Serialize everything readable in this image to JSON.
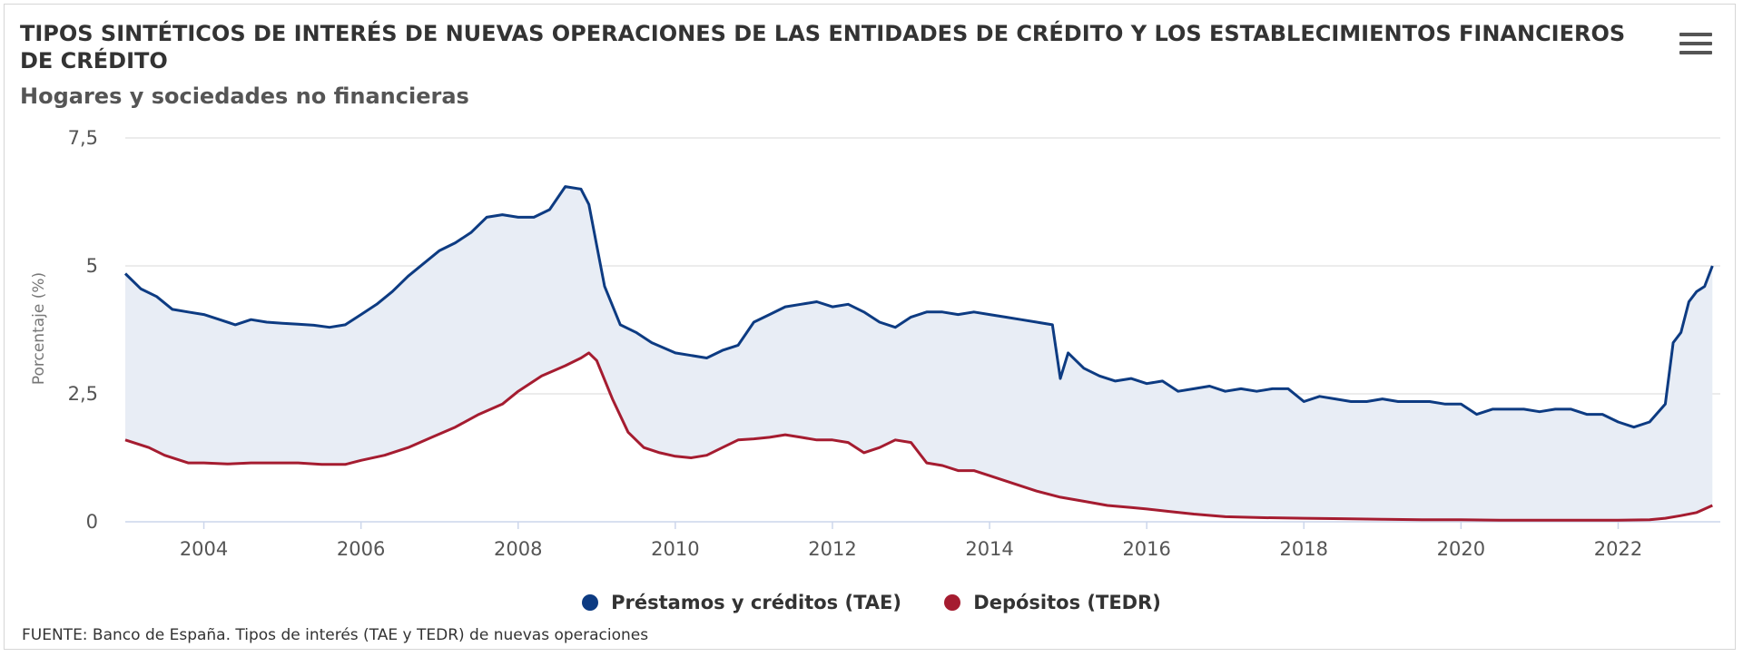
{
  "header": {
    "title": "TIPOS SINTÉTICOS DE INTERÉS DE NUEVAS OPERACIONES DE LAS ENTIDADES DE CRÉDITO Y LOS ESTABLECIMIENTOS FINANCIEROS DE CRÉDITO",
    "subtitle": "Hogares y sociedades no financieras",
    "menu_icon": "hamburger-menu-icon"
  },
  "source": "FUENTE: Banco de España. Tipos de interés (TAE y TEDR) de nuevas operaciones",
  "legend": [
    {
      "label": "Préstamos y créditos (TAE)",
      "color": "#0d3b82"
    },
    {
      "label": "Depósitos (TEDR)",
      "color": "#a51c30"
    }
  ],
  "chart_data": {
    "type": "line",
    "ylabel": "Porcentaje (%)",
    "ylim": [
      0,
      7.5
    ],
    "yticks": [
      "0",
      "2,5",
      "5",
      "7,5"
    ],
    "xlim": [
      2003.0,
      2023.3
    ],
    "xticks": [
      "2004",
      "2006",
      "2008",
      "2010",
      "2012",
      "2014",
      "2016",
      "2018",
      "2020",
      "2022"
    ],
    "grid": true,
    "legend_position": "bottom",
    "fill_between_series": true,
    "fill_color": "#e8edf5",
    "series": [
      {
        "name": "Préstamos y créditos (TAE)",
        "color": "#0d3b82",
        "x": [
          2003.0,
          2003.2,
          2003.4,
          2003.6,
          2003.8,
          2004.0,
          2004.2,
          2004.4,
          2004.6,
          2004.8,
          2005.0,
          2005.2,
          2005.4,
          2005.6,
          2005.8,
          2006.0,
          2006.2,
          2006.4,
          2006.6,
          2006.8,
          2007.0,
          2007.2,
          2007.4,
          2007.6,
          2007.8,
          2008.0,
          2008.2,
          2008.4,
          2008.6,
          2008.8,
          2008.9,
          2009.0,
          2009.1,
          2009.3,
          2009.5,
          2009.7,
          2010.0,
          2010.2,
          2010.4,
          2010.6,
          2010.8,
          2011.0,
          2011.2,
          2011.4,
          2011.6,
          2011.8,
          2012.0,
          2012.2,
          2012.4,
          2012.6,
          2012.8,
          2013.0,
          2013.2,
          2013.4,
          2013.6,
          2013.8,
          2014.0,
          2014.2,
          2014.4,
          2014.6,
          2014.8,
          2014.9,
          2015.0,
          2015.2,
          2015.4,
          2015.6,
          2015.8,
          2016.0,
          2016.2,
          2016.4,
          2016.6,
          2016.8,
          2017.0,
          2017.2,
          2017.4,
          2017.6,
          2017.8,
          2018.0,
          2018.2,
          2018.4,
          2018.6,
          2018.8,
          2019.0,
          2019.2,
          2019.4,
          2019.6,
          2019.8,
          2020.0,
          2020.2,
          2020.4,
          2020.6,
          2020.8,
          2021.0,
          2021.2,
          2021.4,
          2021.6,
          2021.8,
          2022.0,
          2022.2,
          2022.4,
          2022.6,
          2022.7,
          2022.8,
          2022.9,
          2023.0,
          2023.1,
          2023.2
        ],
        "values": [
          4.85,
          4.55,
          4.4,
          4.15,
          4.1,
          4.05,
          3.95,
          3.85,
          3.95,
          3.9,
          3.88,
          3.86,
          3.84,
          3.8,
          3.85,
          4.05,
          4.25,
          4.5,
          4.8,
          5.05,
          5.3,
          5.45,
          5.65,
          5.95,
          6.0,
          5.95,
          5.95,
          6.1,
          6.55,
          6.5,
          6.2,
          5.4,
          4.6,
          3.85,
          3.7,
          3.5,
          3.3,
          3.25,
          3.2,
          3.35,
          3.45,
          3.9,
          4.05,
          4.2,
          4.25,
          4.3,
          4.2,
          4.25,
          4.1,
          3.9,
          3.8,
          4.0,
          4.1,
          4.1,
          4.05,
          4.1,
          4.05,
          4.0,
          3.95,
          3.9,
          3.85,
          2.8,
          3.3,
          3.0,
          2.85,
          2.75,
          2.8,
          2.7,
          2.75,
          2.55,
          2.6,
          2.65,
          2.55,
          2.6,
          2.55,
          2.6,
          2.6,
          2.35,
          2.45,
          2.4,
          2.35,
          2.35,
          2.4,
          2.35,
          2.35,
          2.35,
          2.3,
          2.3,
          2.1,
          2.2,
          2.2,
          2.2,
          2.15,
          2.2,
          2.2,
          2.1,
          2.1,
          1.95,
          1.85,
          1.95,
          2.3,
          3.5,
          3.7,
          4.3,
          4.5,
          4.6,
          5.0
        ]
      },
      {
        "name": "Depósitos (TEDR)",
        "color": "#a51c30",
        "x": [
          2003.0,
          2003.3,
          2003.5,
          2003.8,
          2004.0,
          2004.3,
          2004.6,
          2004.9,
          2005.2,
          2005.5,
          2005.8,
          2006.0,
          2006.3,
          2006.6,
          2006.9,
          2007.2,
          2007.5,
          2007.8,
          2008.0,
          2008.3,
          2008.6,
          2008.8,
          2008.9,
          2009.0,
          2009.2,
          2009.4,
          2009.6,
          2009.8,
          2010.0,
          2010.2,
          2010.4,
          2010.6,
          2010.8,
          2011.0,
          2011.2,
          2011.4,
          2011.6,
          2011.8,
          2012.0,
          2012.2,
          2012.4,
          2012.6,
          2012.8,
          2013.0,
          2013.2,
          2013.4,
          2013.6,
          2013.8,
          2014.0,
          2014.3,
          2014.6,
          2014.9,
          2015.2,
          2015.5,
          2015.8,
          2016.0,
          2016.3,
          2016.6,
          2017.0,
          2017.5,
          2018.0,
          2018.5,
          2019.0,
          2019.5,
          2020.0,
          2020.5,
          2021.0,
          2021.5,
          2022.0,
          2022.4,
          2022.6,
          2022.8,
          2023.0,
          2023.2
        ],
        "values": [
          1.6,
          1.45,
          1.3,
          1.15,
          1.15,
          1.13,
          1.15,
          1.15,
          1.15,
          1.12,
          1.12,
          1.2,
          1.3,
          1.45,
          1.65,
          1.85,
          2.1,
          2.3,
          2.55,
          2.85,
          3.05,
          3.2,
          3.3,
          3.15,
          2.4,
          1.75,
          1.45,
          1.35,
          1.28,
          1.25,
          1.3,
          1.45,
          1.6,
          1.62,
          1.65,
          1.7,
          1.65,
          1.6,
          1.6,
          1.55,
          1.35,
          1.45,
          1.6,
          1.55,
          1.15,
          1.1,
          1.0,
          1.0,
          0.9,
          0.75,
          0.6,
          0.48,
          0.4,
          0.32,
          0.28,
          0.25,
          0.2,
          0.15,
          0.1,
          0.08,
          0.07,
          0.06,
          0.05,
          0.04,
          0.04,
          0.03,
          0.03,
          0.03,
          0.03,
          0.04,
          0.07,
          0.12,
          0.18,
          0.32
        ]
      }
    ]
  }
}
